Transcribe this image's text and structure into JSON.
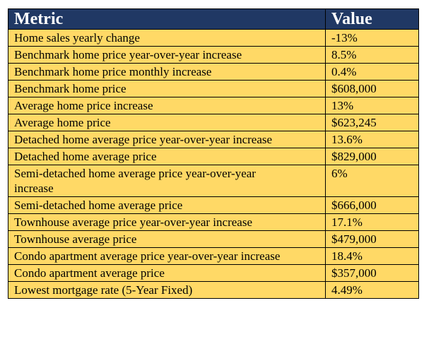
{
  "headers": {
    "metric": "Metric",
    "value": "Value"
  },
  "colors": {
    "header_bg": "#203864",
    "row_bg": "#FFD966"
  },
  "rows": [
    {
      "metric": "Home sales yearly change",
      "value": "-13%"
    },
    {
      "metric": "Benchmark home price year-over-year increase",
      "value": "8.5%"
    },
    {
      "metric": "Benchmark home price monthly increase",
      "value": "0.4%"
    },
    {
      "metric": "Benchmark home price",
      "value": "$608,000"
    },
    {
      "metric": "Average home price increase",
      "value": "13%"
    },
    {
      "metric": "Average home price",
      "value": "$623,245"
    },
    {
      "metric": "Detached home average price year-over-year increase",
      "value": "13.6%"
    },
    {
      "metric": "Detached home average price",
      "value": "$829,000"
    },
    {
      "metric": "Semi-detached home average price year-over-year increase",
      "value": "6%"
    },
    {
      "metric": "Semi-detached home average price",
      "value": "$666,000"
    },
    {
      "metric": "Townhouse average price year-over-year increase",
      "value": "17.1%"
    },
    {
      "metric": "Townhouse average price",
      "value": "$479,000"
    },
    {
      "metric": "Condo apartment average price year-over-year increase",
      "value": "18.4%"
    },
    {
      "metric": "Condo apartment average price",
      "value": "$357,000"
    },
    {
      "metric": "Lowest mortgage rate (5-Year Fixed)",
      "value": "4.49%"
    }
  ]
}
